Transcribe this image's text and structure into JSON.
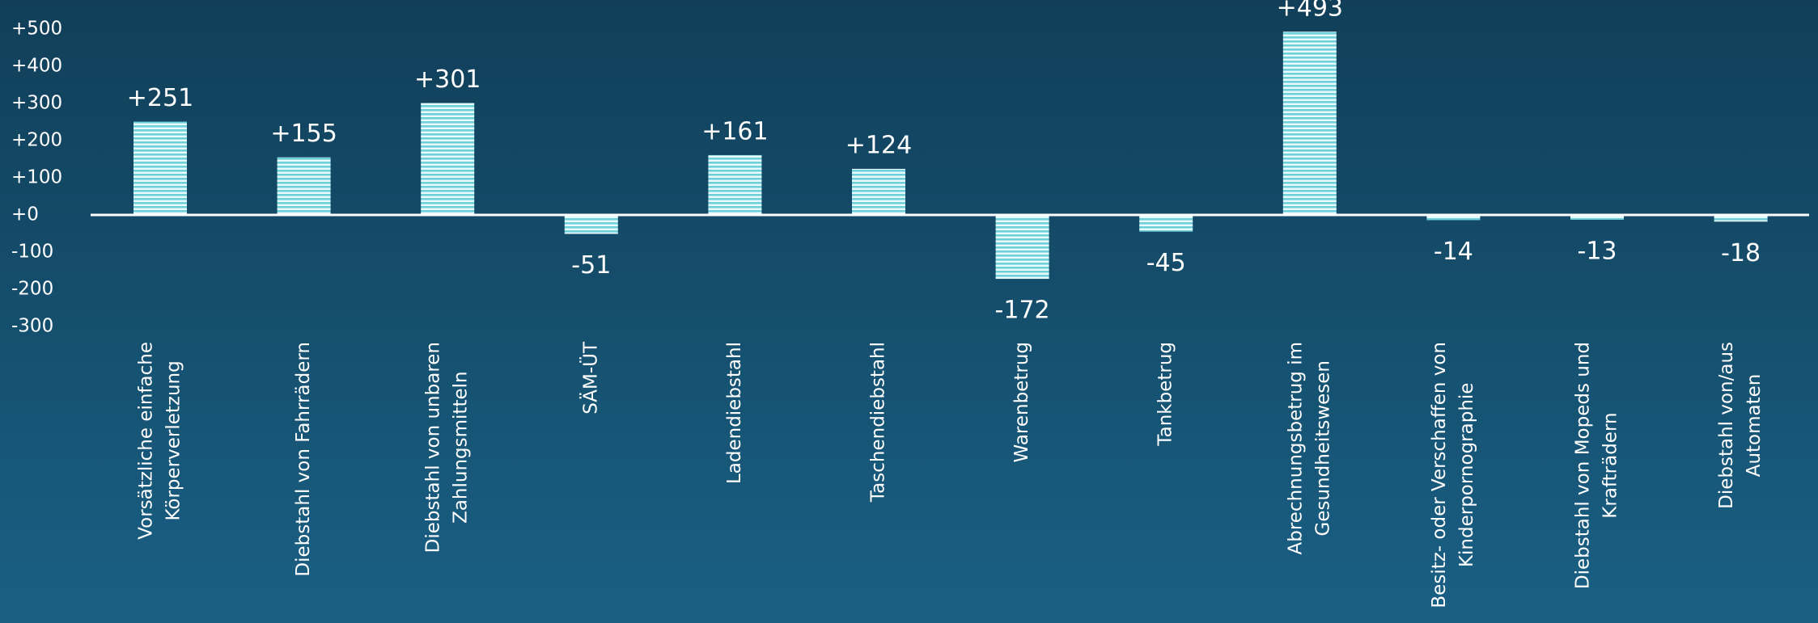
{
  "chart_data": {
    "type": "bar",
    "categories": [
      [
        "Vorsätzliche einfache",
        "Körperverletzung"
      ],
      [
        "Diebstahl von Fahrrädern"
      ],
      [
        "Diebstahl von unbaren",
        "Zahlungsmitteln"
      ],
      [
        "SÄM-ÜT"
      ],
      [
        "Ladendiebstahl"
      ],
      [
        "Taschendiebstahl"
      ],
      [
        "Warenbetrug"
      ],
      [
        "Tankbetrug"
      ],
      [
        "Abrechnungsbetrug im",
        "Gesundheitswesen"
      ],
      [
        "Besitz- oder Verschaffen von",
        "Kinderpornographie"
      ],
      [
        "Diebstahl von Mopeds und",
        "Krafträdern"
      ],
      [
        "Diebstahl von/aus",
        "Automaten"
      ]
    ],
    "values": [
      251,
      155,
      301,
      -51,
      161,
      124,
      -172,
      -45,
      493,
      -14,
      -13,
      -18
    ],
    "value_labels": [
      "+251",
      "+155",
      "+301",
      "-51",
      "+161",
      "+124",
      "-172",
      "-45",
      "+493",
      "-14",
      "-13",
      "-18"
    ],
    "color": "#6fd0dc",
    "ylim": [
      -300,
      500
    ],
    "yticks": [
      {
        "value": 500,
        "label": "+500"
      },
      {
        "value": 400,
        "label": "+400"
      },
      {
        "value": 300,
        "label": "+300"
      },
      {
        "value": 200,
        "label": "+200"
      },
      {
        "value": 100,
        "label": "+100"
      },
      {
        "value": 0,
        "label": "+0"
      },
      -100,
      -200,
      -300
    ],
    "grid": false
  }
}
